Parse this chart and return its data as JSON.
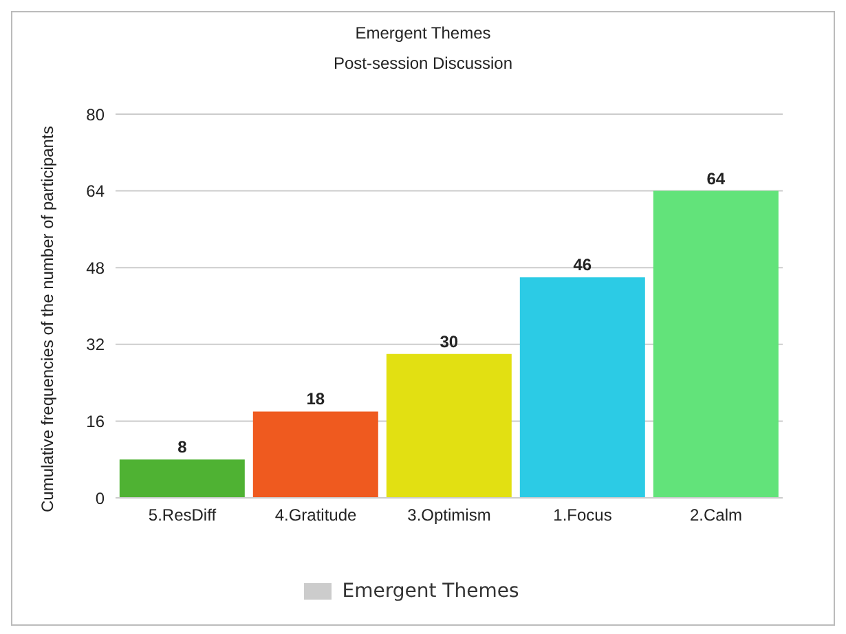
{
  "chart_data": {
    "type": "bar",
    "title": "Emergent Themes",
    "subtitle": "Post-session Discussion",
    "ylabel": "Cumulative frequencies of the number of participants",
    "categories": [
      "5.ResDiff",
      "4.Gratitude",
      "3.Optimism",
      "1.Focus",
      "2.Calm"
    ],
    "series": [
      {
        "name": "Emergent Themes",
        "color": "#cccccc",
        "colors": [
          "#4fb233",
          "#ef5a1f",
          "#e2e012",
          "#2ccbe5",
          "#62e37a"
        ],
        "values": [
          8,
          18,
          30,
          46,
          64
        ]
      }
    ],
    "ylim": [
      0,
      80
    ],
    "yticks": [
      0,
      16,
      32,
      48,
      64,
      80
    ],
    "grid": "y",
    "legend": "bottom",
    "data_labels": true
  }
}
